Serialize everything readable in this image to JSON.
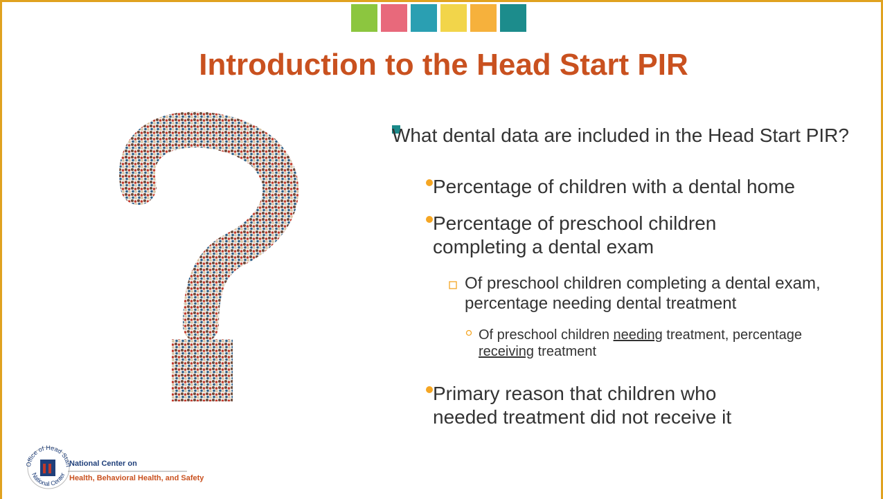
{
  "title": "Introduction to the Head Start PIR",
  "bullets": [
    {
      "text": "What dental data are included in the Head Start PIR?",
      "children": [
        {
          "text": "Percentage of children with a dental home"
        },
        {
          "text": "Percentage of preschool children completing a dental exam",
          "children": [
            {
              "text": "Of preschool children completing a dental exam, percentage needing dental treatment",
              "children": [
                {
                  "parts": [
                    "Of preschool children ",
                    {
                      "text": "needing",
                      "underline": true
                    },
                    " treatment, percentage ",
                    {
                      "text": "receiving",
                      "underline": true
                    },
                    " treatment"
                  ]
                }
              ]
            }
          ]
        },
        {
          "text": "Primary reason that children who needed treatment did not receive it"
        }
      ]
    }
  ],
  "footer": {
    "seal_top": "Office of Head Start",
    "seal_bottom": "National Center",
    "line1": "National Center on",
    "line2": "Health, Behavioral Health, and Safety"
  }
}
